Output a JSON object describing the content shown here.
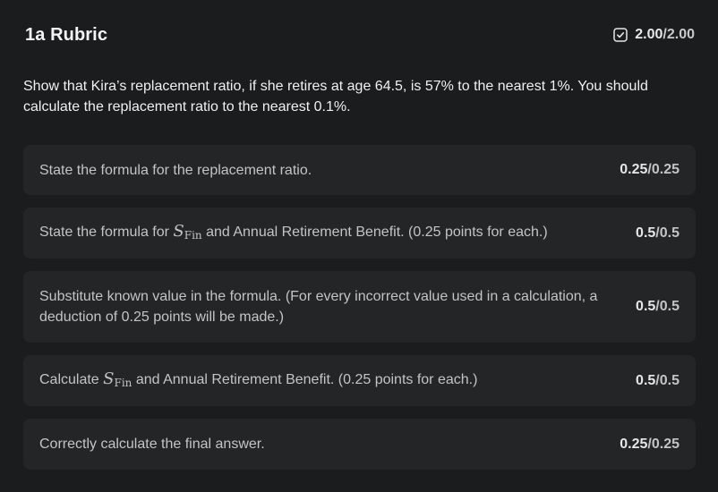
{
  "header": {
    "title": "1a Rubric",
    "score_earned": "2.00",
    "score_sep": "/",
    "score_max": "2.00"
  },
  "question": {
    "text": "Show that Kira’s replacement ratio, if she retires at age 64.5, is 57% to the nearest 1%. You should calculate the replacement ratio to the nearest 0.1%."
  },
  "criteria": [
    {
      "text": "State the formula for the replacement ratio.",
      "earned": "0.25",
      "max": "0.25"
    },
    {
      "text_before": "State the formula for ",
      "math_var": "S",
      "math_sub": "Fin",
      "text_after": " and Annual Retirement Benefit. (0.25 points for each.)",
      "earned": "0.5",
      "max": "0.5"
    },
    {
      "text": "Substitute known value in the formula. (For every incorrect value used in a calculation, a deduction of 0.25 points will be made.)",
      "earned": "0.5",
      "max": "0.5"
    },
    {
      "text_before": "Calculate ",
      "math_var": "S",
      "math_sub": "Fin",
      "text_after": " and Annual Retirement Benefit. (0.25 points for each.)",
      "earned": "0.5",
      "max": "0.5"
    },
    {
      "text": "Correctly calculate the final answer.",
      "earned": "0.25",
      "max": "0.25"
    }
  ],
  "icons": {
    "total_status": "checkbox-checked-icon"
  }
}
